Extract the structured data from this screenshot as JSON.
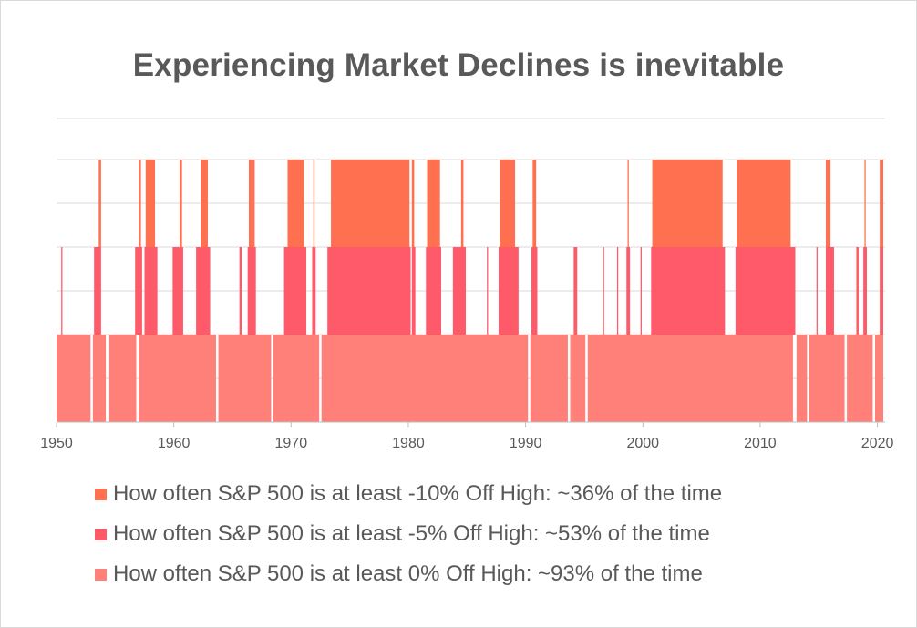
{
  "chart_data": {
    "type": "area",
    "title": "Experiencing Market Declines is inevitable",
    "xlabel": "",
    "ylabel": "",
    "xlim": [
      1950,
      2020.5
    ],
    "x_ticks": [
      "1950",
      "1960",
      "1970",
      "1980",
      "1990",
      "2000",
      "2010",
      "2020"
    ],
    "grid": "horizontal",
    "legend_position": "bottom",
    "series": [
      {
        "name": "How often S&P 500 is at least -10% Off High: ~36% of the time",
        "color": "#ff7050",
        "level": 3,
        "periods": [
          [
            1953.6,
            1953.8
          ],
          [
            1957.0,
            1957.2
          ],
          [
            1957.6,
            1958.4
          ],
          [
            1960.5,
            1960.7
          ],
          [
            1962.3,
            1962.9
          ],
          [
            1966.4,
            1966.9
          ],
          [
            1969.7,
            1971.1
          ],
          [
            1971.9,
            1972.0
          ],
          [
            1973.4,
            1980.1
          ],
          [
            1980.3,
            1980.5
          ],
          [
            1981.6,
            1982.7
          ],
          [
            1984.5,
            1984.7
          ],
          [
            1987.8,
            1989.1
          ],
          [
            1990.6,
            1990.9
          ],
          [
            1998.7,
            1998.8
          ],
          [
            2000.8,
            2006.8
          ],
          [
            2008.0,
            2012.6
          ],
          [
            2015.6,
            2016.0
          ],
          [
            2018.9,
            2019.0
          ],
          [
            2020.2,
            2020.5
          ]
        ]
      },
      {
        "name": "How often S&P 500 is at least -5% Off High: ~53% of the time",
        "color": "#ff5a6a",
        "level": 2,
        "periods": [
          [
            1950.4,
            1950.5
          ],
          [
            1953.2,
            1953.8
          ],
          [
            1956.7,
            1957.3
          ],
          [
            1957.5,
            1958.6
          ],
          [
            1959.9,
            1960.8
          ],
          [
            1961.9,
            1963.1
          ],
          [
            1965.6,
            1965.8
          ],
          [
            1966.3,
            1967.0
          ],
          [
            1969.4,
            1971.3
          ],
          [
            1971.8,
            1972.1
          ],
          [
            1973.1,
            1980.2
          ],
          [
            1980.3,
            1980.6
          ],
          [
            1981.5,
            1982.8
          ],
          [
            1983.8,
            1984.9
          ],
          [
            1986.7,
            1986.8
          ],
          [
            1987.7,
            1989.4
          ],
          [
            1990.5,
            1991.0
          ],
          [
            1994.1,
            1994.4
          ],
          [
            1996.6,
            1996.7
          ],
          [
            1997.8,
            1997.9
          ],
          [
            1998.6,
            1998.9
          ],
          [
            1999.8,
            1999.9
          ],
          [
            2000.7,
            2007.0
          ],
          [
            2007.9,
            2013.0
          ],
          [
            2014.8,
            2014.9
          ],
          [
            2015.6,
            2016.3
          ],
          [
            2018.2,
            2018.4
          ],
          [
            2018.8,
            2019.1
          ],
          [
            2020.2,
            2020.5
          ]
        ]
      },
      {
        "name": "How often S&P 500 is at least 0% Off High: ~93% of the time",
        "color": "#ff8078",
        "level": 1,
        "periods": [
          [
            1950.0,
            1952.9
          ],
          [
            1953.1,
            1954.2
          ],
          [
            1954.5,
            1956.8
          ],
          [
            1957.0,
            1963.6
          ],
          [
            1963.8,
            1968.3
          ],
          [
            1968.5,
            1972.4
          ],
          [
            1972.6,
            1990.2
          ],
          [
            1990.4,
            1993.6
          ],
          [
            1993.8,
            1995.1
          ],
          [
            1995.3,
            2012.8
          ],
          [
            2013.1,
            2014.0
          ],
          [
            2014.2,
            2017.2
          ],
          [
            2017.4,
            2019.6
          ],
          [
            2019.8,
            2020.5
          ]
        ]
      }
    ]
  }
}
